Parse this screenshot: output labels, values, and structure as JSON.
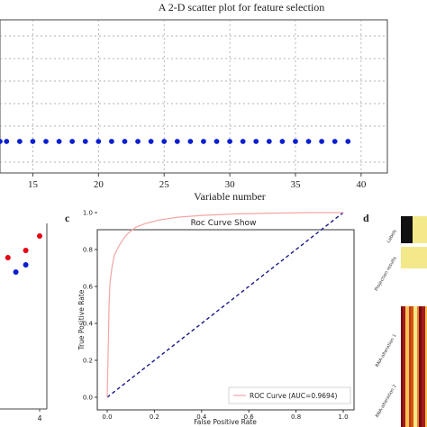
{
  "colors": {
    "blue": "#0b1fd0",
    "red": "#e60012",
    "roc": "#f4a6a6",
    "diag": "#1a1a8c",
    "heat_dark": "#7a0a0a",
    "heat_yellow": "#f3e98a"
  },
  "chart_data": [
    {
      "id": "a",
      "type": "scatter",
      "title": "A 2-D scatter plot for feature selection",
      "xlabel": "Variable number",
      "ylabel": "",
      "xlim": [
        12.5,
        42
      ],
      "x_ticks": [
        15,
        20,
        25,
        30,
        35,
        40
      ],
      "grid": true,
      "series": [
        {
          "color": "#0b1fd0",
          "x": [
            12.5,
            13,
            14,
            15,
            16,
            17,
            18,
            19,
            20,
            21,
            22,
            23,
            24,
            25,
            26,
            27,
            28,
            29,
            30,
            31,
            32,
            33,
            34,
            35,
            36,
            37,
            38,
            39
          ],
          "y_level": "constant"
        }
      ]
    },
    {
      "id": "b",
      "type": "scatter",
      "x_ticks": [
        4
      ],
      "series": [
        {
          "color": "#e60012",
          "points": [
            [
              1.0,
              3
            ],
            [
              2.4,
              5
            ],
            [
              3.3,
              6
            ],
            [
              4.0,
              8
            ]
          ]
        },
        {
          "color": "#0b1fd0",
          "points": [
            [
              1.6,
              2
            ],
            [
              2.8,
              3
            ],
            [
              3.3,
              4
            ]
          ]
        }
      ]
    },
    {
      "id": "c",
      "panel_letter": "c",
      "type": "line",
      "title": "Roc Curve Show",
      "xlabel": "False Positive Rate",
      "ylabel": "True Positive Rate",
      "xlim": [
        0,
        1
      ],
      "ylim": [
        0,
        1
      ],
      "x_ticks": [
        "0.0",
        "0.2",
        "0.4",
        "0.6",
        "0.8",
        "1.0"
      ],
      "y_ticks": [
        "0.0",
        "0.2",
        "0.4",
        "0.6",
        "0.8",
        "1.0"
      ],
      "legend": "lower-right",
      "series": [
        {
          "name": "ROC Curve (AUC=0.9694)",
          "color": "#f4a6a6",
          "points": [
            [
              0,
              0
            ],
            [
              0.005,
              0.3
            ],
            [
              0.008,
              0.5
            ],
            [
              0.012,
              0.62
            ],
            [
              0.02,
              0.7
            ],
            [
              0.03,
              0.77
            ],
            [
              0.05,
              0.82
            ],
            [
              0.07,
              0.86
            ],
            [
              0.09,
              0.89
            ],
            [
              0.12,
              0.92
            ],
            [
              0.16,
              0.94
            ],
            [
              0.22,
              0.96
            ],
            [
              0.3,
              0.975
            ],
            [
              0.4,
              0.985
            ],
            [
              0.55,
              0.993
            ],
            [
              0.7,
              0.997
            ],
            [
              0.85,
              1.0
            ],
            [
              1,
              1
            ]
          ]
        },
        {
          "name": "diagonal",
          "color": "#1a1a8c",
          "dashed": true,
          "points": [
            [
              0,
              0
            ],
            [
              1,
              1
            ]
          ]
        }
      ]
    },
    {
      "id": "d",
      "panel_letter": "d",
      "type": "heatmap",
      "row_labels": [
        "Labels",
        "Projection results",
        "RNA-alteration 1",
        "RNA-alteration 2"
      ]
    }
  ]
}
